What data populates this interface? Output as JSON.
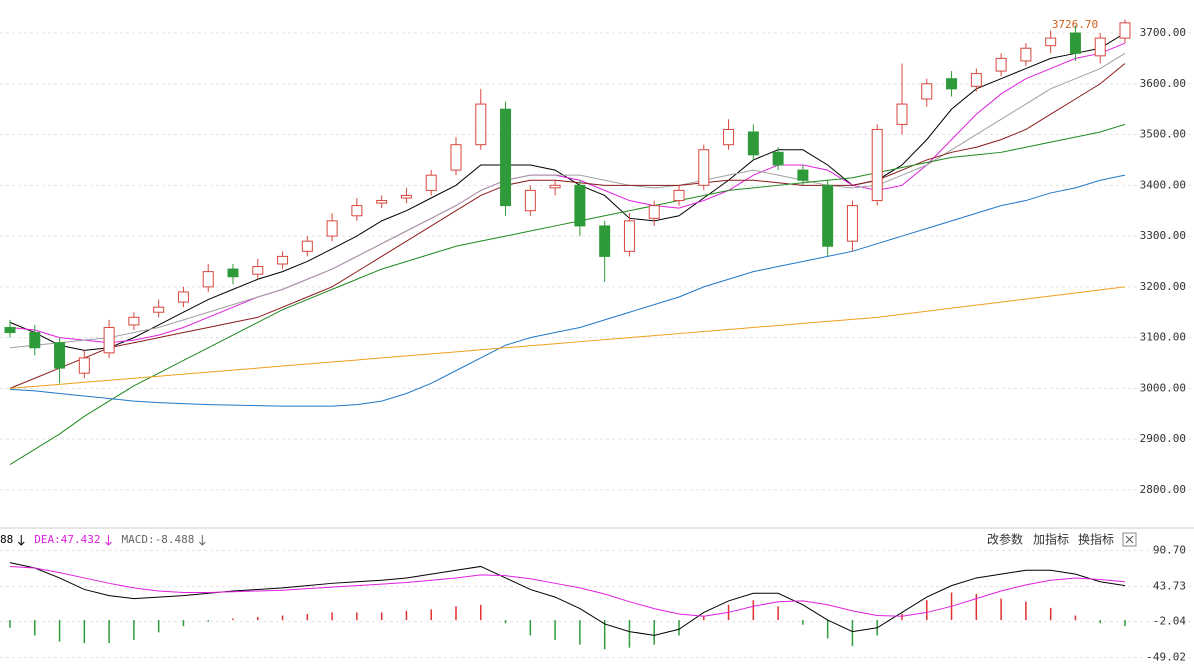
{
  "chart_data": [
    {
      "type": "candlestick",
      "annotation": "3726.70",
      "up_color": "#d9463f",
      "down_color": "#2f9a3a",
      "ylim": [
        2727,
        3765
      ],
      "yticks": [
        {
          "value": 2800,
          "label": "2800.00"
        },
        {
          "value": 2900,
          "label": "2900.00"
        },
        {
          "value": 3000,
          "label": "3000.00"
        },
        {
          "value": 3100,
          "label": "3100.00"
        },
        {
          "value": 3200,
          "label": "3200.00"
        },
        {
          "value": 3300,
          "label": "3300.00"
        },
        {
          "value": 3400,
          "label": "3400.00"
        },
        {
          "value": 3500,
          "label": "3500.00"
        },
        {
          "value": 3600,
          "label": "3600.00"
        },
        {
          "value": 3700,
          "label": "3700.00"
        }
      ],
      "grid": true,
      "open": [
        3120,
        3110,
        3090,
        3030,
        3070,
        3125,
        3150,
        3170,
        3200,
        3235,
        3225,
        3245,
        3270,
        3300,
        3340,
        3365,
        3375,
        3390,
        3430,
        3480,
        3550,
        3350,
        3395,
        3400,
        3320,
        3270,
        3335,
        3370,
        3400,
        3480,
        3505,
        3465,
        3430,
        3400,
        3290,
        3370,
        3520,
        3570,
        3610,
        3595,
        3625,
        3645,
        3675,
        3700,
        3655,
        3690
      ],
      "high": [
        3135,
        3125,
        3100,
        3075,
        3135,
        3150,
        3175,
        3200,
        3245,
        3245,
        3255,
        3270,
        3300,
        3345,
        3375,
        3380,
        3395,
        3430,
        3495,
        3590,
        3565,
        3400,
        3410,
        3410,
        3330,
        3345,
        3370,
        3400,
        3480,
        3530,
        3520,
        3475,
        3440,
        3410,
        3370,
        3520,
        3640,
        3610,
        3625,
        3630,
        3660,
        3680,
        3705,
        3715,
        3700,
        3726.7
      ],
      "low": [
        3100,
        3065,
        3010,
        3020,
        3060,
        3115,
        3140,
        3160,
        3190,
        3205,
        3215,
        3235,
        3260,
        3290,
        3330,
        3355,
        3365,
        3380,
        3420,
        3470,
        3340,
        3340,
        3380,
        3300,
        3210,
        3260,
        3320,
        3360,
        3390,
        3470,
        3450,
        3430,
        3400,
        3260,
        3270,
        3360,
        3500,
        3555,
        3575,
        3585,
        3615,
        3635,
        3660,
        3645,
        3640,
        3680
      ],
      "close": [
        3110,
        3080,
        3040,
        3060,
        3120,
        3140,
        3160,
        3190,
        3230,
        3220,
        3240,
        3260,
        3290,
        3330,
        3360,
        3370,
        3380,
        3420,
        3480,
        3560,
        3360,
        3390,
        3400,
        3320,
        3260,
        3330,
        3360,
        3390,
        3470,
        3510,
        3460,
        3440,
        3410,
        3280,
        3360,
        3510,
        3560,
        3600,
        3590,
        3620,
        3650,
        3670,
        3690,
        3660,
        3690,
        3720
      ],
      "series": [
        {
          "color": "#000000",
          "values": [
            3130,
            3110,
            3085,
            3075,
            3080,
            3100,
            3125,
            3150,
            3175,
            3195,
            3215,
            3230,
            3250,
            3275,
            3300,
            3330,
            3350,
            3375,
            3400,
            3440,
            3440,
            3440,
            3430,
            3400,
            3380,
            3335,
            3330,
            3340,
            3375,
            3410,
            3450,
            3470,
            3470,
            3440,
            3400,
            3410,
            3440,
            3490,
            3550,
            3590,
            3610,
            3630,
            3650,
            3660,
            3670,
            3700
          ]
        },
        {
          "color": "#e020e0",
          "values": [
            3120,
            3115,
            3100,
            3095,
            3090,
            3095,
            3105,
            3120,
            3140,
            3160,
            3180,
            3195,
            3215,
            3235,
            3260,
            3285,
            3310,
            3335,
            3360,
            3390,
            3410,
            3420,
            3420,
            3410,
            3390,
            3370,
            3360,
            3355,
            3370,
            3390,
            3420,
            3440,
            3440,
            3430,
            3400,
            3390,
            3400,
            3440,
            3490,
            3540,
            3580,
            3610,
            3630,
            3650,
            3660,
            3680
          ]
        },
        {
          "color": "#a0a0a0",
          "values": [
            3080,
            3085,
            3090,
            3095,
            3100,
            3110,
            3120,
            3135,
            3150,
            3165,
            3180,
            3195,
            3215,
            3235,
            3260,
            3285,
            3310,
            3335,
            3360,
            3390,
            3410,
            3420,
            3420,
            3420,
            3410,
            3400,
            3395,
            3400,
            3410,
            3420,
            3430,
            3420,
            3410,
            3400,
            3395,
            3400,
            3420,
            3440,
            3470,
            3500,
            3530,
            3560,
            3590,
            3610,
            3630,
            3660
          ]
        },
        {
          "color": "#8b1a1a",
          "values": [
            3000,
            3020,
            3040,
            3060,
            3080,
            3090,
            3100,
            3110,
            3120,
            3130,
            3140,
            3160,
            3180,
            3200,
            3230,
            3260,
            3290,
            3320,
            3350,
            3380,
            3400,
            3410,
            3410,
            3405,
            3400,
            3400,
            3400,
            3400,
            3405,
            3410,
            3410,
            3405,
            3400,
            3400,
            3400,
            3410,
            3430,
            3450,
            3465,
            3475,
            3490,
            3510,
            3540,
            3570,
            3600,
            3640
          ]
        },
        {
          "color": "#1f8a1f",
          "values": [
            2850,
            2880,
            2910,
            2945,
            2975,
            3005,
            3030,
            3055,
            3080,
            3105,
            3130,
            3155,
            3175,
            3195,
            3215,
            3235,
            3250,
            3265,
            3280,
            3290,
            3300,
            3310,
            3320,
            3330,
            3340,
            3350,
            3360,
            3370,
            3380,
            3390,
            3395,
            3400,
            3405,
            3410,
            3415,
            3425,
            3435,
            3445,
            3455,
            3460,
            3465,
            3475,
            3485,
            3495,
            3505,
            3520
          ]
        },
        {
          "color": "#1f78c8",
          "values": [
            2998,
            2995,
            2990,
            2985,
            2980,
            2975,
            2972,
            2970,
            2968,
            2967,
            2966,
            2965,
            2965,
            2965,
            2968,
            2975,
            2990,
            3010,
            3035,
            3060,
            3085,
            3100,
            3110,
            3120,
            3135,
            3150,
            3165,
            3180,
            3200,
            3215,
            3230,
            3240,
            3250,
            3260,
            3270,
            3285,
            3300,
            3315,
            3330,
            3345,
            3360,
            3370,
            3385,
            3395,
            3410,
            3420
          ]
        },
        {
          "color": "#f0a020",
          "values": [
            3000,
            3004,
            3008,
            3012,
            3016,
            3020,
            3024,
            3028,
            3032,
            3036,
            3040,
            3044,
            3048,
            3052,
            3056,
            3060,
            3064,
            3068,
            3072,
            3076,
            3080,
            3084,
            3088,
            3092,
            3096,
            3100,
            3104,
            3108,
            3112,
            3116,
            3120,
            3124,
            3128,
            3132,
            3136,
            3140,
            3146,
            3152,
            3158,
            3164,
            3170,
            3176,
            3182,
            3188,
            3194,
            3200
          ]
        }
      ]
    },
    {
      "type": "macd",
      "legend": [
        {
          "text": "88",
          "color": "#000000"
        },
        {
          "text": "DEA:47.432",
          "color": "#e020e0"
        },
        {
          "text": "MACD:-8.488",
          "color": "#666666"
        }
      ],
      "ylim": [
        -56,
        98
      ],
      "yticks": [
        {
          "value": 90.7,
          "label": "90.70"
        },
        43.73,
        -2.04,
        {
          "value": -49.02,
          "label": "-49.02"
        }
      ],
      "up_color": "#e03030",
      "down_color": "#2f9a3a",
      "hist": [
        -10,
        -20,
        -28,
        -30,
        -30,
        -26,
        -16,
        -8,
        -2,
        2,
        4,
        6,
        8,
        10,
        10,
        10,
        12,
        14,
        18,
        20,
        -4,
        -20,
        -26,
        -32,
        -38,
        -36,
        -32,
        -20,
        6,
        20,
        26,
        18,
        -6,
        -24,
        -34,
        -20,
        8,
        26,
        36,
        34,
        28,
        24,
        16,
        6,
        -4,
        -8
      ],
      "series": [
        {
          "color": "#000000",
          "values": [
            75,
            68,
            55,
            40,
            32,
            28,
            30,
            32,
            35,
            38,
            40,
            42,
            45,
            48,
            50,
            52,
            55,
            60,
            65,
            70,
            55,
            40,
            30,
            15,
            -5,
            -15,
            -20,
            -12,
            10,
            25,
            35,
            35,
            20,
            0,
            -15,
            -10,
            10,
            30,
            45,
            55,
            60,
            65,
            65,
            60,
            50,
            45
          ]
        },
        {
          "color": "#e020e0",
          "values": [
            70,
            68,
            62,
            55,
            48,
            42,
            38,
            36,
            36,
            37,
            38,
            39,
            41,
            43,
            45,
            47,
            49,
            52,
            55,
            59,
            58,
            54,
            48,
            42,
            34,
            24,
            15,
            8,
            5,
            10,
            18,
            24,
            25,
            20,
            12,
            6,
            5,
            10,
            18,
            28,
            38,
            46,
            52,
            55,
            53,
            50
          ]
        }
      ]
    }
  ],
  "toolbar": [
    "改参数",
    "加指标",
    "换指标"
  ]
}
